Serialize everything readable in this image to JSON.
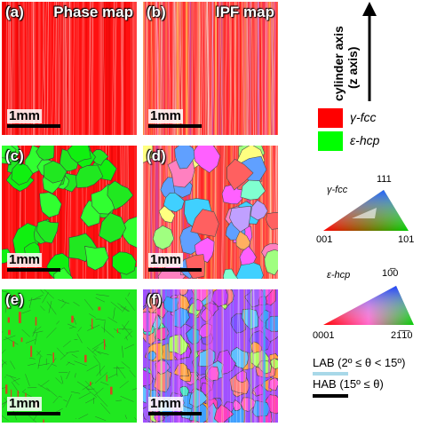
{
  "panels": [
    {
      "id": "a",
      "label": "(a)",
      "title": "Phase map",
      "scale": "1mm",
      "kind": "phase-fcc"
    },
    {
      "id": "b",
      "label": "(b)",
      "title": "IPF map",
      "scale": "1mm",
      "kind": "ipf-fcc"
    },
    {
      "id": "c",
      "label": "(c)",
      "title": "",
      "scale": "1mm",
      "kind": "phase-mixed"
    },
    {
      "id": "d",
      "label": "(d)",
      "title": "",
      "scale": "1mm",
      "kind": "ipf-mixed"
    },
    {
      "id": "e",
      "label": "(e)",
      "title": "",
      "scale": "1mm",
      "kind": "phase-hcp"
    },
    {
      "id": "f",
      "label": "(f)",
      "title": "",
      "scale": "1mm",
      "kind": "ipf-hcp"
    }
  ],
  "axis": {
    "line1": "cylinder axis",
    "line2": "(z axis)"
  },
  "legend": [
    {
      "label": "γ-fcc",
      "color": "#ff0000"
    },
    {
      "label": "ε-hcp",
      "color": "#00ff00"
    }
  ],
  "ipf_fcc": {
    "title": "γ-fcc",
    "top": "111",
    "left": "001",
    "right": "101"
  },
  "ipf_hcp": {
    "title": "ε-hcp",
    "top": "10̅0",
    "left": "0001",
    "right": "21̅1̅0"
  },
  "boundaries": {
    "lab": "LAB (2º ≤ θ < 15º)",
    "lab_color": "#a8d8e8",
    "hab": "HAB (15º ≤ θ)",
    "hab_color": "#000000"
  }
}
